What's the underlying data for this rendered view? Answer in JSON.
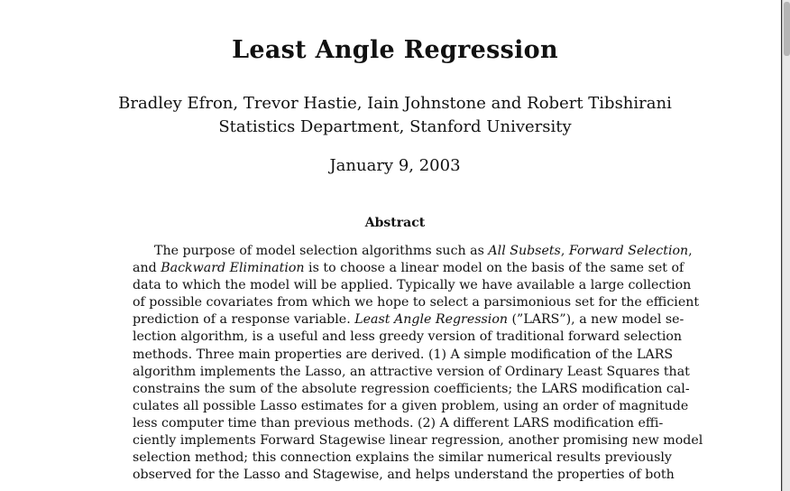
{
  "document": {
    "title": "Least Angle Regression",
    "authors": "Bradley Efron, Trevor Hastie, Iain Johnstone and Robert Tibshirani",
    "affiliation": "Statistics Department, Stanford University",
    "date": "January 9, 2003",
    "abstract_heading": "Abstract",
    "abstract_lines": [
      "The purpose of model selection algorithms such as All Subsets, Forward Selection,",
      "and Backward Elimination is to choose a linear model on the basis of the same set of",
      "data to which the model will be applied.  Typically we have available a large collection",
      "of possible covariates from which we hope to select a parsimonious set for the efficient",
      "prediction of a response variable. Least Angle Regression (”LARS”), a new model se-",
      "lection algorithm, is a useful and less greedy version of traditional forward selection",
      "methods. Three main properties are derived. (1) A simple modification of the LARS",
      "algorithm implements the Lasso, an attractive version of Ordinary Least Squares that",
      "constrains the sum of the absolute regression coefficients; the LARS modification cal-",
      "culates all possible Lasso estimates for a given problem, using an order of magnitude",
      "less computer time than previous methods.  (2) A different LARS modification effi-",
      "ciently implements Forward Stagewise linear regression, another promising new model",
      "selection method; this connection explains the similar numerical results previously",
      "observed for the Lasso and Stagewise, and helps understand the properties of both"
    ],
    "italic_phrases": [
      "All Subsets",
      "Forward Selection",
      "Backward Elimination",
      "Least Angle Regression"
    ]
  }
}
